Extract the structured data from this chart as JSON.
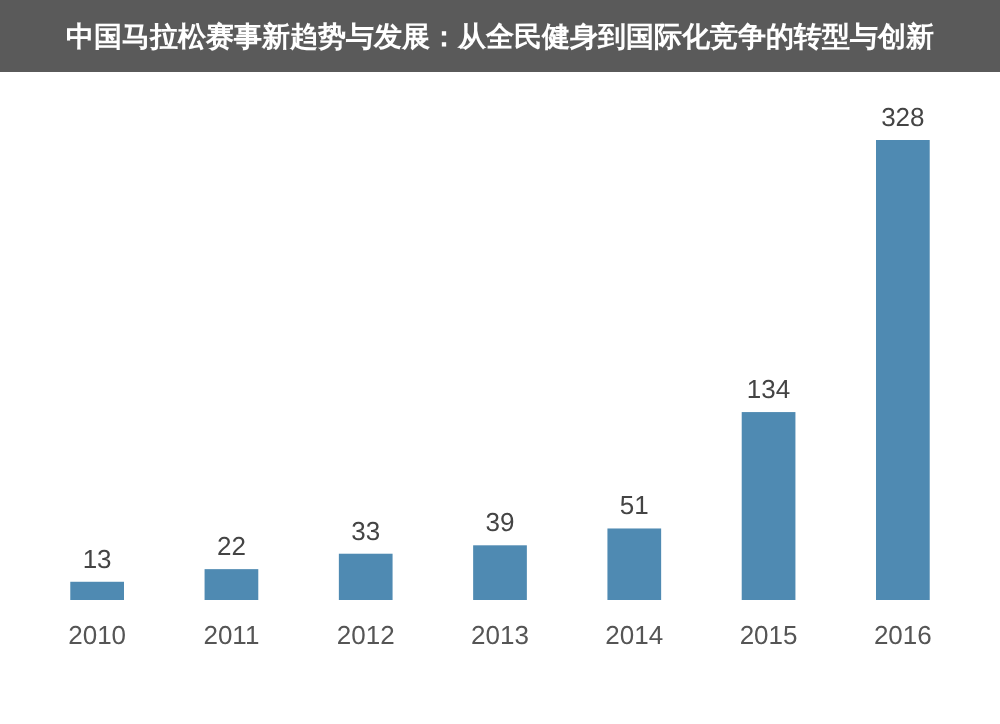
{
  "chart_data": {
    "type": "bar",
    "title": "中国马拉松赛事新趋势与发展：从全民健身到国际化竞争的转型与创新",
    "categories": [
      "2010",
      "2011",
      "2012",
      "2013",
      "2014",
      "2015",
      "2016"
    ],
    "values": [
      13,
      22,
      33,
      39,
      51,
      134,
      328
    ],
    "color": "#4f8ab2",
    "data_labels": true
  }
}
